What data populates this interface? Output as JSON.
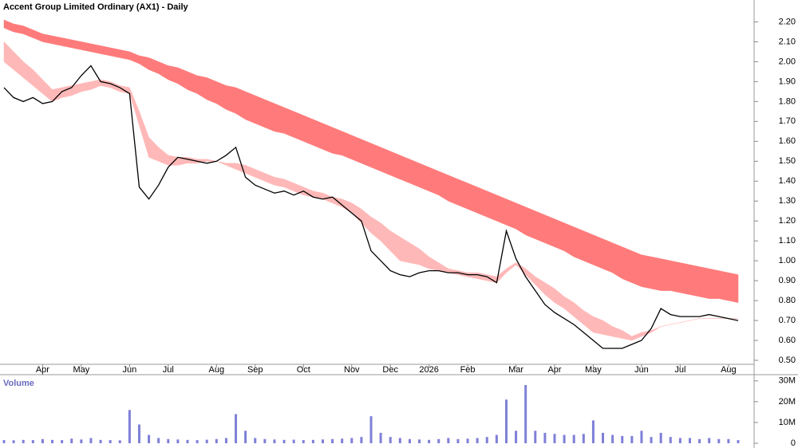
{
  "chart_data": [
    {
      "type": "line",
      "title": "Accent Group Limited Ordinary (AX1) - Daily",
      "categories": [
        null,
        null,
        null,
        null,
        "Apr",
        null,
        null,
        null,
        "May",
        null,
        null,
        null,
        null,
        "Jun",
        null,
        null,
        null,
        "Jul",
        null,
        null,
        null,
        null,
        "Aug",
        null,
        null,
        null,
        "Sep",
        null,
        null,
        null,
        null,
        "Oct",
        null,
        null,
        null,
        null,
        "Nov",
        null,
        null,
        null,
        "Dec",
        null,
        null,
        null,
        "2026",
        null,
        null,
        null,
        "Feb",
        null,
        null,
        null,
        null,
        "Mar",
        null,
        null,
        null,
        "Apr",
        null,
        null,
        null,
        "May",
        null,
        null,
        null,
        null,
        "Jun",
        null,
        null,
        null,
        "Jul",
        null,
        null,
        null,
        null,
        "Aug",
        null
      ],
      "series": [
        {
          "color": "#000000",
          "values": [
            1.87,
            1.82,
            1.8,
            1.82,
            1.79,
            1.8,
            1.85,
            1.87,
            1.93,
            1.98,
            1.9,
            1.89,
            1.87,
            1.84,
            1.37,
            1.31,
            1.38,
            1.47,
            1.52,
            1.51,
            1.5,
            1.49,
            1.5,
            1.53,
            1.57,
            1.42,
            1.38,
            1.36,
            1.34,
            1.35,
            1.33,
            1.35,
            1.32,
            1.31,
            1.32,
            1.28,
            1.24,
            1.2,
            1.05,
            1.0,
            0.95,
            0.93,
            0.92,
            0.94,
            0.95,
            0.95,
            0.94,
            0.94,
            0.93,
            0.93,
            0.92,
            0.89,
            1.15,
            1.01,
            0.92,
            0.85,
            0.78,
            0.74,
            0.71,
            0.68,
            0.64,
            0.6,
            0.56,
            0.56,
            0.56,
            0.58,
            0.6,
            0.66,
            0.76,
            0.73,
            0.72,
            0.72,
            0.72,
            0.73,
            0.72,
            0.71,
            0.7
          ]
        }
      ],
      "bands": [
        {
          "color": "#ff7b7b",
          "upper": [
            2.21,
            2.19,
            2.18,
            2.16,
            2.14,
            2.13,
            2.12,
            2.11,
            2.1,
            2.09,
            2.08,
            2.07,
            2.06,
            2.05,
            2.03,
            2.02,
            2.0,
            1.98,
            1.97,
            1.95,
            1.93,
            1.92,
            1.9,
            1.88,
            1.87,
            1.85,
            1.83,
            1.81,
            1.79,
            1.77,
            1.75,
            1.73,
            1.71,
            1.69,
            1.67,
            1.65,
            1.63,
            1.61,
            1.59,
            1.57,
            1.55,
            1.53,
            1.51,
            1.49,
            1.47,
            1.45,
            1.43,
            1.41,
            1.39,
            1.37,
            1.35,
            1.33,
            1.31,
            1.29,
            1.27,
            1.25,
            1.23,
            1.21,
            1.19,
            1.17,
            1.15,
            1.13,
            1.11,
            1.09,
            1.07,
            1.05,
            1.03,
            1.02,
            1.01,
            1.0,
            0.99,
            0.98,
            0.97,
            0.96,
            0.95,
            0.94,
            0.93
          ],
          "lower": [
            2.17,
            2.15,
            2.14,
            2.12,
            2.1,
            2.09,
            2.08,
            2.07,
            2.06,
            2.05,
            2.04,
            2.03,
            2.02,
            2.01,
            1.99,
            1.96,
            1.94,
            1.91,
            1.89,
            1.86,
            1.84,
            1.81,
            1.79,
            1.76,
            1.74,
            1.71,
            1.69,
            1.67,
            1.65,
            1.64,
            1.62,
            1.6,
            1.58,
            1.56,
            1.54,
            1.53,
            1.51,
            1.49,
            1.47,
            1.45,
            1.43,
            1.41,
            1.39,
            1.37,
            1.35,
            1.33,
            1.3,
            1.28,
            1.26,
            1.24,
            1.22,
            1.2,
            1.18,
            1.16,
            1.13,
            1.11,
            1.09,
            1.07,
            1.05,
            1.02,
            1.0,
            0.98,
            0.96,
            0.94,
            0.91,
            0.89,
            0.87,
            0.86,
            0.85,
            0.85,
            0.84,
            0.83,
            0.82,
            0.81,
            0.81,
            0.8,
            0.79
          ]
        },
        {
          "color": "#ffb8b8",
          "upper": [
            2.1,
            2.05,
            2.0,
            1.96,
            1.91,
            1.86,
            1.87,
            1.88,
            1.89,
            1.9,
            1.91,
            1.9,
            1.88,
            1.87,
            1.75,
            1.62,
            1.57,
            1.53,
            1.52,
            1.52,
            1.51,
            1.51,
            1.5,
            1.49,
            1.49,
            1.48,
            1.46,
            1.44,
            1.42,
            1.41,
            1.39,
            1.37,
            1.35,
            1.34,
            1.32,
            1.31,
            1.29,
            1.26,
            1.22,
            1.19,
            1.15,
            1.12,
            1.09,
            1.06,
            1.02,
            0.99,
            0.96,
            0.95,
            0.94,
            0.94,
            0.93,
            0.92,
            0.96,
            0.99,
            0.96,
            0.92,
            0.89,
            0.86,
            0.82,
            0.79,
            0.75,
            0.72,
            0.7,
            0.67,
            0.65,
            0.62,
            0.64,
            0.65,
            0.67,
            0.68,
            0.69,
            0.7,
            0.71,
            0.71,
            0.71,
            0.71,
            0.71
          ],
          "lower": [
            2.0,
            1.96,
            1.92,
            1.88,
            1.84,
            1.8,
            1.82,
            1.83,
            1.85,
            1.86,
            1.88,
            1.87,
            1.85,
            1.84,
            1.68,
            1.52,
            1.5,
            1.48,
            1.48,
            1.49,
            1.49,
            1.5,
            1.5,
            1.48,
            1.46,
            1.44,
            1.42,
            1.4,
            1.38,
            1.37,
            1.35,
            1.33,
            1.32,
            1.31,
            1.29,
            1.27,
            1.24,
            1.19,
            1.14,
            1.1,
            1.05,
            1.0,
            0.99,
            0.98,
            0.96,
            0.95,
            0.94,
            0.93,
            0.92,
            0.91,
            0.9,
            0.89,
            0.94,
            0.98,
            0.93,
            0.88,
            0.83,
            0.79,
            0.76,
            0.72,
            0.68,
            0.64,
            0.63,
            0.62,
            0.61,
            0.6,
            0.62,
            0.64,
            0.67,
            0.68,
            0.69,
            0.7,
            0.71,
            0.71,
            0.71,
            0.71,
            0.71
          ]
        }
      ],
      "ylim": [
        0.48,
        2.31
      ],
      "yticks": [
        {
          "value": 0.5,
          "label": "0.50"
        },
        {
          "value": 0.6,
          "label": "0.60"
        },
        {
          "value": 0.7,
          "label": "0.70"
        },
        {
          "value": 0.8,
          "label": "0.80"
        },
        {
          "value": 0.9,
          "label": "0.90"
        },
        {
          "value": 1.0,
          "label": "1.00"
        },
        {
          "value": 1.1,
          "label": "1.10"
        },
        {
          "value": 1.2,
          "label": "1.20"
        },
        {
          "value": 1.3,
          "label": "1.30"
        },
        {
          "value": 1.4,
          "label": "1.40"
        },
        {
          "value": 1.5,
          "label": "1.50"
        },
        {
          "value": 1.6,
          "label": "1.60"
        },
        {
          "value": 1.7,
          "label": "1.70"
        },
        {
          "value": 1.8,
          "label": "1.80"
        },
        {
          "value": 1.9,
          "label": "1.90"
        },
        {
          "value": 2.0,
          "label": "2.00"
        },
        {
          "value": 2.1,
          "label": "2.10"
        },
        {
          "value": 2.2,
          "label": "2.20"
        }
      ]
    },
    {
      "type": "bar",
      "title": "Volume",
      "color": "#7f7fd8",
      "values": [
        1.5,
        1.4,
        1.6,
        1.5,
        2.0,
        1.6,
        1.5,
        2.2,
        1.8,
        2.5,
        1.6,
        1.5,
        1.4,
        16,
        9,
        4,
        2.5,
        2,
        1.8,
        1.6,
        1.5,
        1.7,
        2,
        2.5,
        14,
        6,
        2.5,
        2,
        1.8,
        1.6,
        1.7,
        1.5,
        1.6,
        1.8,
        2,
        2.2,
        2.5,
        3,
        13,
        5,
        3,
        2.5,
        2,
        1.8,
        1.6,
        2,
        2.5,
        2,
        2.2,
        2.5,
        3,
        4,
        21,
        6,
        28,
        6,
        5,
        4.5,
        4,
        4,
        4.5,
        11,
        5,
        4,
        3.5,
        3.5,
        6,
        3,
        5,
        3,
        2.5,
        2.5,
        2,
        2.5,
        2,
        2,
        1.5
      ],
      "ylim": [
        0,
        33
      ],
      "yticks": [
        0,
        {
          "value": 10,
          "label": "10M"
        },
        {
          "value": 20,
          "label": "20M"
        },
        {
          "value": 30,
          "label": "30M"
        }
      ]
    }
  ]
}
